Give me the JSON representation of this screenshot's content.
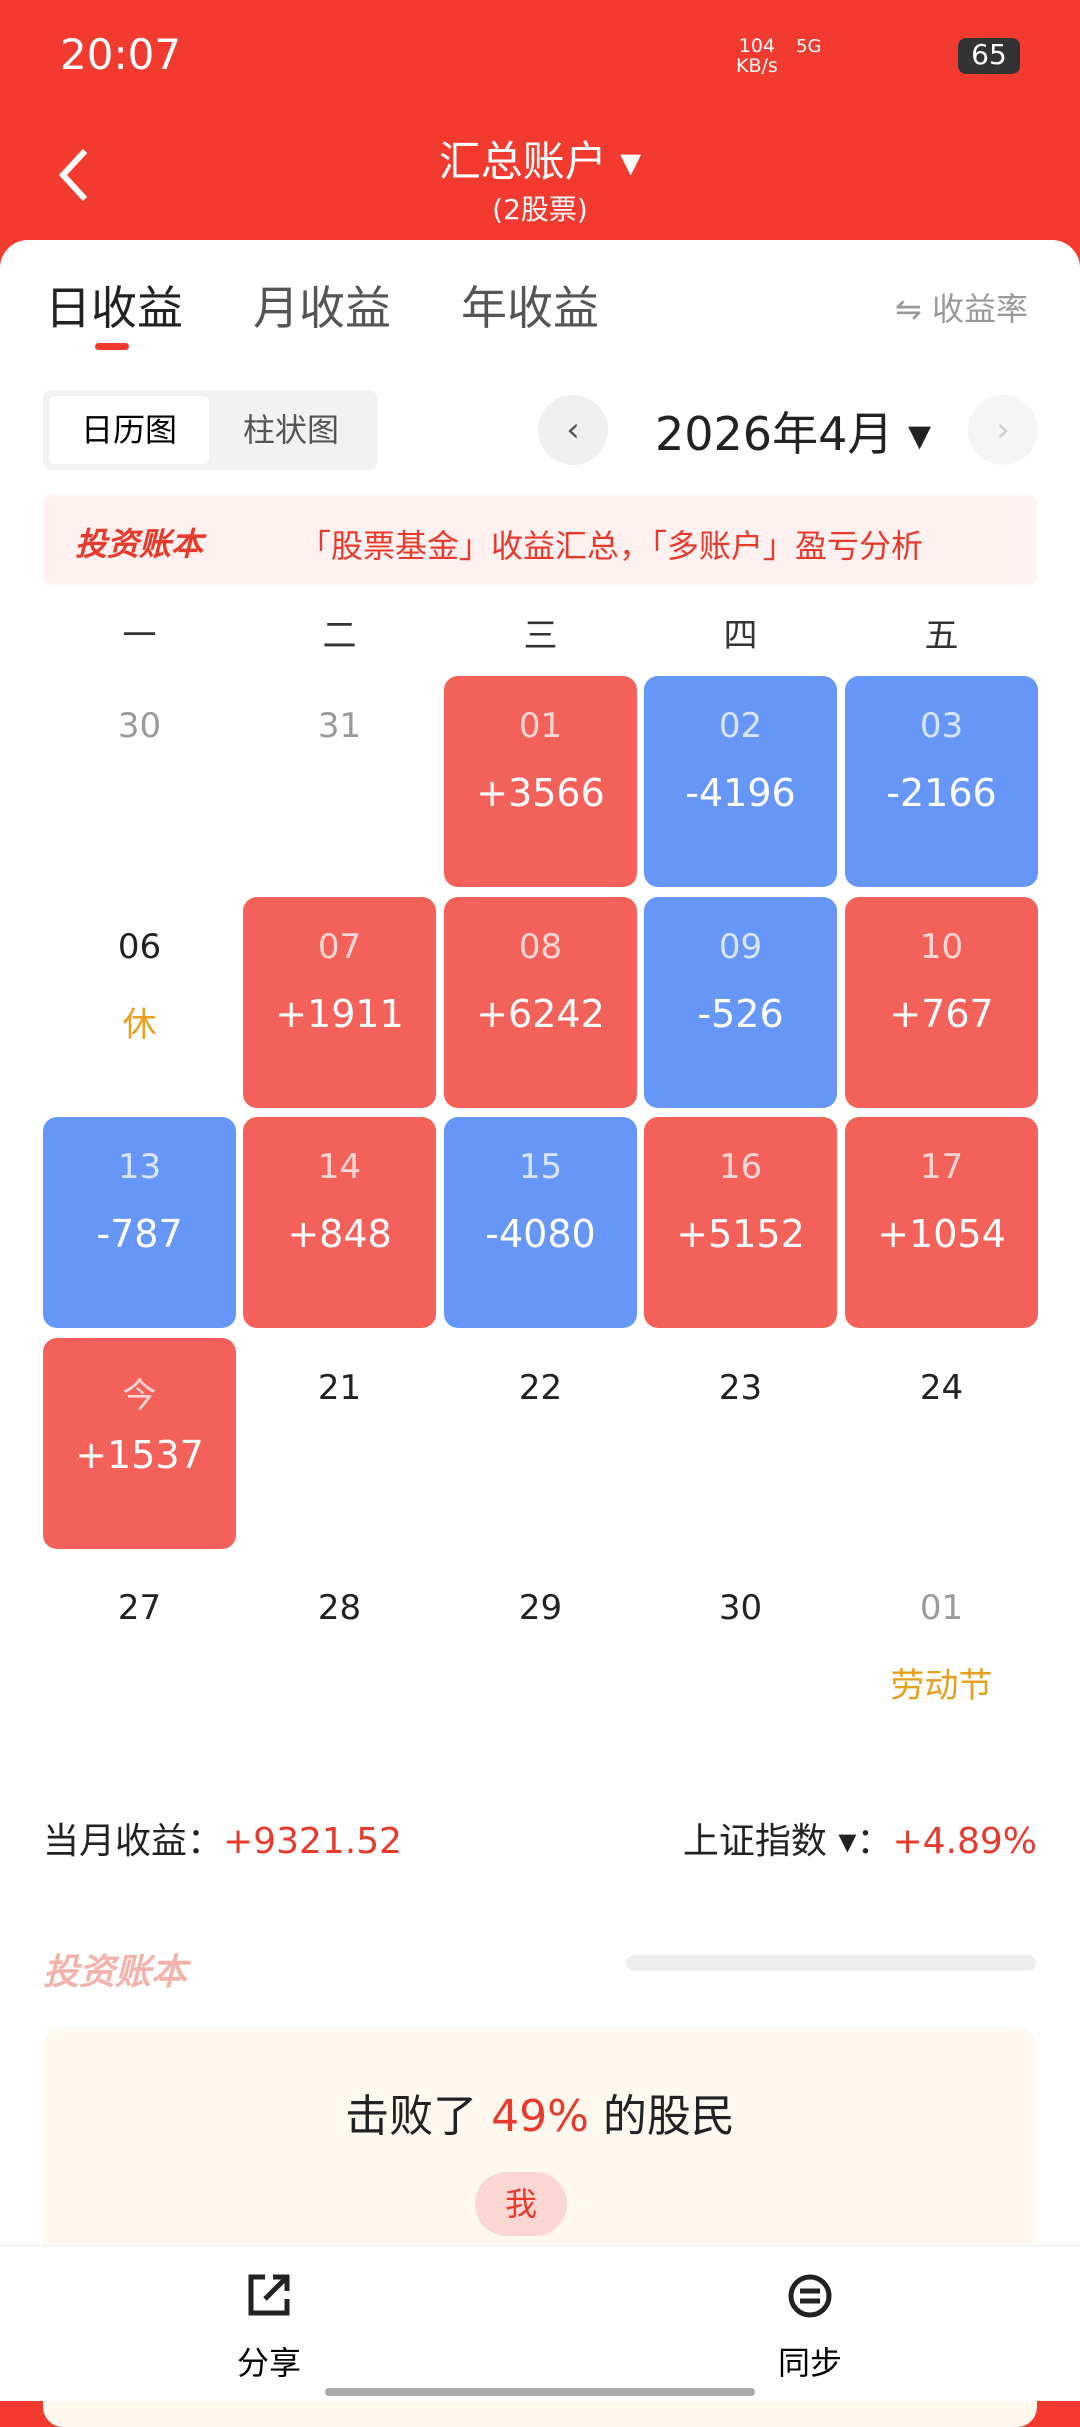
{
  "status": {
    "time": "20:07",
    "speed": "104",
    "speed_unit": "KB/s",
    "network": "5G",
    "battery": "65"
  },
  "header": {
    "title": "汇总账户",
    "subtitle": "(2股票)"
  },
  "tabs": {
    "items": [
      "日收益",
      "月收益",
      "年收益"
    ],
    "rate": "收益率"
  },
  "views": {
    "items": [
      "日历图",
      "柱状图"
    ],
    "month": "2026年4月"
  },
  "banner": {
    "brand": "投资账本",
    "text": "「股票基金」收益汇总，「多账户」盈亏分析"
  },
  "weekdays": [
    "一",
    "二",
    "三",
    "四",
    "五"
  ],
  "calendar": [
    {
      "day": "30",
      "day_color": "#9a9a9a"
    },
    {
      "day": "31",
      "day_color": "#9a9a9a"
    },
    {
      "day": "01",
      "value": "+3566",
      "color": "#f4615a"
    },
    {
      "day": "02",
      "value": "-4196",
      "color": "#6697f8"
    },
    {
      "day": "03",
      "value": "-2166",
      "color": "#6697f8"
    },
    {
      "day": "06",
      "note": "休"
    },
    {
      "day": "07",
      "value": "+1911",
      "color": "#f4615a"
    },
    {
      "day": "08",
      "value": "+6242",
      "color": "#f4615a"
    },
    {
      "day": "09",
      "value": "-526",
      "color": "#6697f8"
    },
    {
      "day": "10",
      "value": "+767",
      "color": "#f4615a"
    },
    {
      "day": "13",
      "value": "-787",
      "color": "#6697f8"
    },
    {
      "day": "14",
      "value": "+848",
      "color": "#f4615a"
    },
    {
      "day": "15",
      "value": "-4080",
      "color": "#6697f8"
    },
    {
      "day": "16",
      "value": "+5152",
      "color": "#f4615a"
    },
    {
      "day": "17",
      "value": "+1054",
      "color": "#f4615a"
    },
    {
      "day": "今",
      "value": "+1537",
      "color": "#f4615a"
    },
    {
      "day": "21"
    },
    {
      "day": "22"
    },
    {
      "day": "23"
    },
    {
      "day": "24"
    },
    {
      "day": "27"
    },
    {
      "day": "28"
    },
    {
      "day": "29"
    },
    {
      "day": "30"
    },
    {
      "day": "01",
      "day_color": "#9a9a9a",
      "note": "劳动节"
    }
  ],
  "summary": {
    "label": "当月收益：",
    "value": "+9321.52",
    "index_label": "上证指数",
    "colon": "：",
    "index_value": "+4.89%"
  },
  "footer_brand": "投资账本",
  "rank": {
    "prefix": "击败了",
    "percent": "49%",
    "suffix": "的股民",
    "me": "我"
  },
  "bottom": {
    "share": "分享",
    "sync": "同步"
  }
}
